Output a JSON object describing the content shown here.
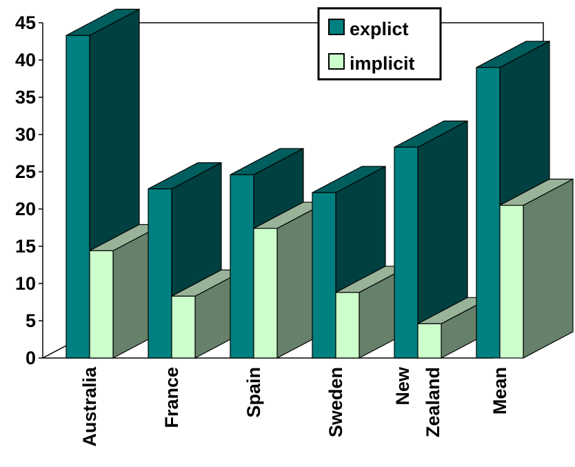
{
  "chart_data": {
    "type": "bar",
    "title": "",
    "xlabel": "",
    "ylabel": "",
    "ylim": [
      0,
      45
    ],
    "yticks": [
      0,
      5,
      10,
      15,
      20,
      25,
      30,
      35,
      40,
      45
    ],
    "categories": [
      [
        "Australia"
      ],
      [
        "France"
      ],
      [
        "Spain"
      ],
      [
        "Sweden"
      ],
      [
        "New",
        "Zealand"
      ],
      [
        "Mean"
      ]
    ],
    "series": [
      {
        "name": "explict",
        "color": "#008080",
        "values": [
          43.3,
          22.7,
          24.6,
          22.2,
          28.3,
          39.0
        ]
      },
      {
        "name": "implicit",
        "color": "#ccffcc",
        "values": [
          14.4,
          8.3,
          17.4,
          8.8,
          4.6,
          20.5
        ]
      }
    ],
    "legend_position": "top-right",
    "grid": false,
    "style": "3d-clustered-column"
  }
}
